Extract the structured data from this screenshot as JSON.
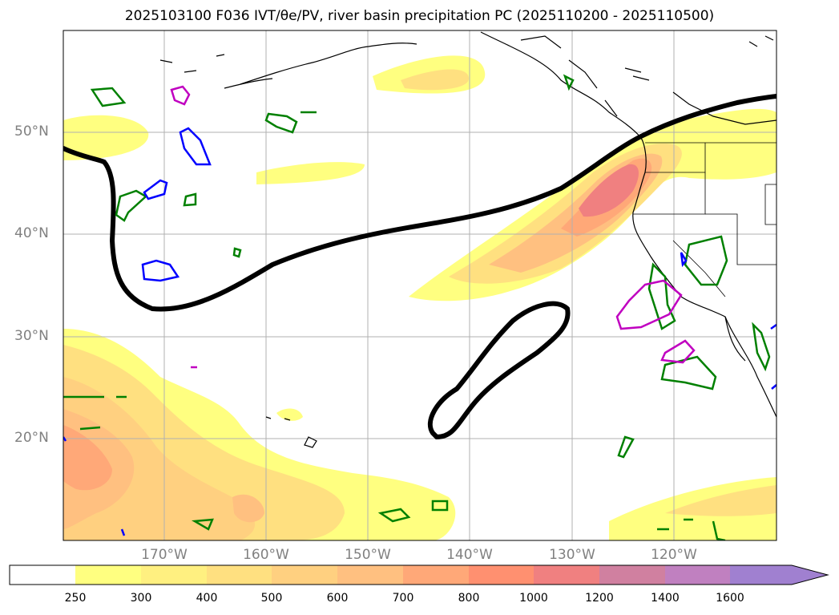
{
  "title": "2025103100 F036 IVT/θe/PV, river basin precipitation PC (2025110200 - 2025110500)",
  "lat_labels": [
    "50°N",
    "40°N",
    "30°N",
    "20°N"
  ],
  "lon_labels": [
    "170°W",
    "160°W",
    "150°W",
    "140°W",
    "130°W",
    "120°W"
  ],
  "colorbar": {
    "levels": [
      "250",
      "300",
      "400",
      "500",
      "600",
      "700",
      "800",
      "1000",
      "1200",
      "1400",
      "1600"
    ],
    "colors": [
      "#ffffff",
      "#ffff80",
      "#fff080",
      "#ffe080",
      "#ffd080",
      "#ffc080",
      "#ffa878",
      "#ff9070",
      "#f08080",
      "#d080a0",
      "#c080c0",
      "#a080d0"
    ]
  },
  "colors": {
    "jet_contour": "#000000",
    "pv_green": "#008000",
    "pv_blue": "#0000ff",
    "pv_magenta": "#c000c0",
    "grid": "#b0b0b0",
    "coast": "#000000"
  }
}
